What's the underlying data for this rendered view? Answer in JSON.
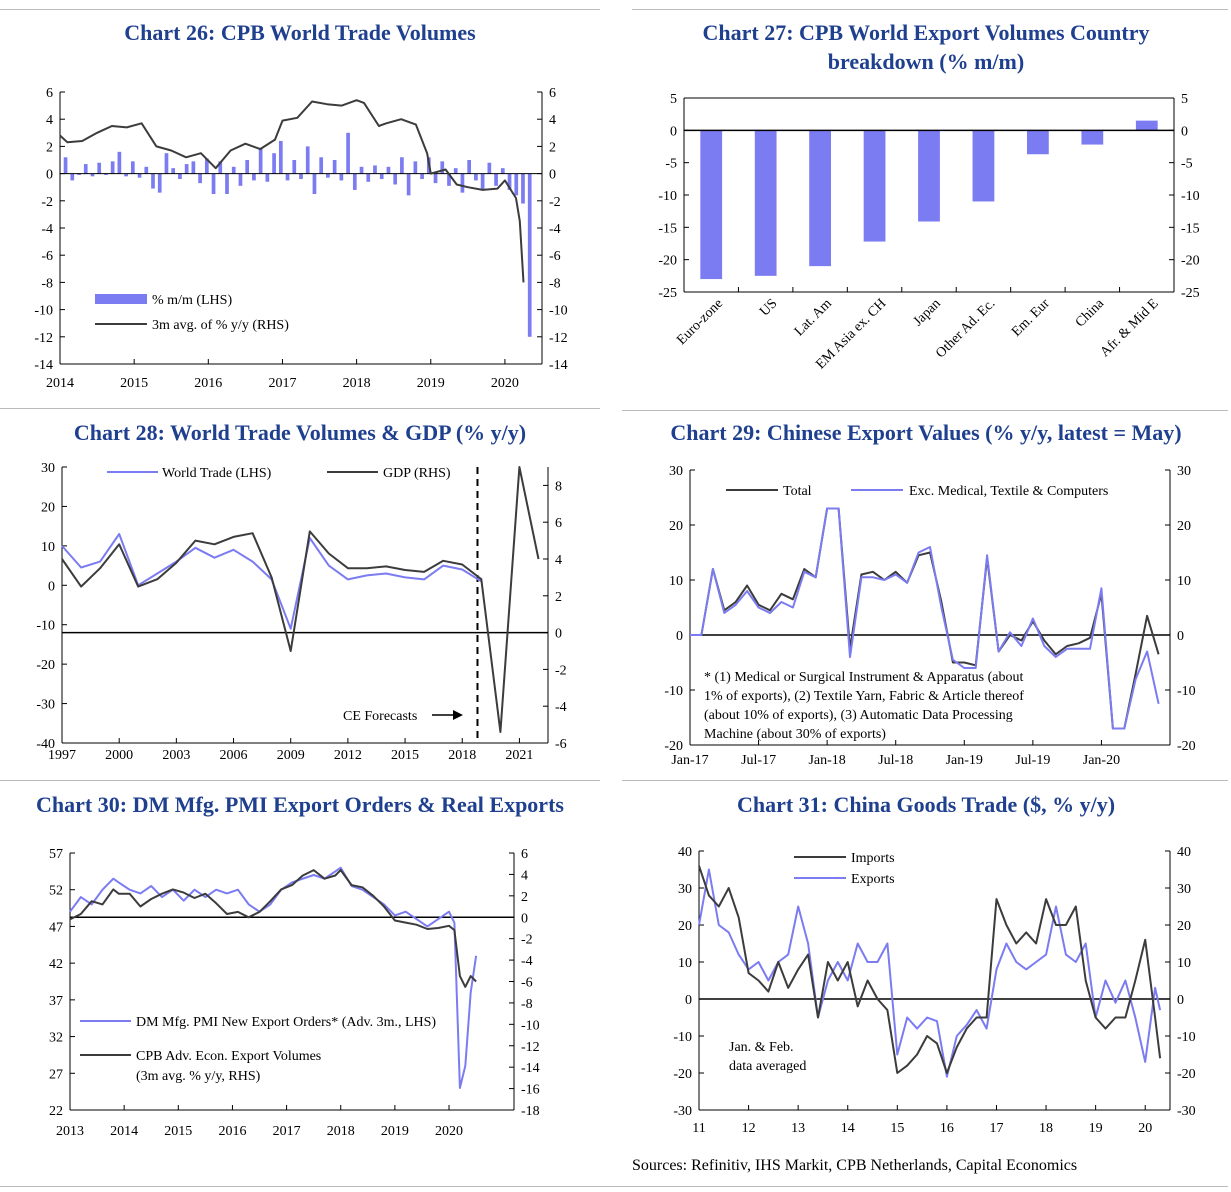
{
  "source_note": "Sources: Refinitiv, IHS Markit, CPB Netherlands, Capital Economics",
  "colors": {
    "title": "#1F3F8F",
    "blue": "#7B7BF2",
    "dark": "#3C3C3C"
  },
  "chart_data": [
    {
      "id": "c26",
      "type": "bar+line",
      "title": "Chart 26: CPB World Trade Volumes",
      "xlim": [
        2014,
        2020.5
      ],
      "ylim": [
        -14,
        6
      ],
      "ylim_right": [
        -14,
        6
      ],
      "y_ticks": [
        "-14",
        "-12",
        "-10",
        "-8",
        "-6",
        "-4",
        "-2",
        "0",
        "2",
        "4",
        "6"
      ],
      "x_ticks": [
        "2014",
        "2015",
        "2016",
        "2017",
        "2018",
        "2019",
        "2020"
      ],
      "legend": [
        "% m/m (LHS)",
        "3m avg. of % y/y (RHS)"
      ],
      "bars_mm": [
        1.2,
        -0.5,
        -0.1,
        0.7,
        -0.2,
        0.8,
        -0.1,
        0.9,
        1.6,
        -0.2,
        0.9,
        -0.3,
        0.5,
        -1.1,
        -1.4,
        1.5,
        0.4,
        -0.4,
        0.7,
        0.9,
        -0.7,
        1.1,
        -1.5,
        0.9,
        -1.5,
        0.5,
        -0.9,
        1.0,
        -0.5,
        1.9,
        -0.6,
        1.5,
        2.4,
        -0.5,
        1.0,
        -0.4,
        2.0,
        -1.5,
        1.2,
        -0.3,
        1.0,
        -0.5,
        3.0,
        -1.2,
        0.5,
        -0.6,
        0.6,
        -0.4,
        0.5,
        -0.8,
        1.2,
        -1.6,
        0.9,
        -0.4,
        1.2,
        -0.7,
        0.9,
        -0.9,
        0.4,
        -1.4,
        1.0,
        -0.5,
        -1.2,
        0.8,
        -0.9,
        0.4,
        -1.2,
        -1.6,
        -2.2,
        -12.0
      ],
      "line_x": [
        2014,
        2014.1,
        2014.3,
        2014.5,
        2014.7,
        2014.9,
        2015.1,
        2015.3,
        2015.5,
        2015.7,
        2015.9,
        2016.1,
        2016.3,
        2016.5,
        2016.7,
        2016.9,
        2017.0,
        2017.2,
        2017.4,
        2017.6,
        2017.8,
        2018.0,
        2018.1,
        2018.3,
        2018.4,
        2018.6,
        2018.8,
        2018.95,
        2019.0,
        2019.2,
        2019.35,
        2019.5,
        2019.7,
        2019.9,
        2020.0,
        2020.15,
        2020.2,
        2020.25
      ],
      "line_y": [
        2.8,
        2.3,
        2.4,
        3.0,
        3.5,
        3.4,
        3.7,
        2.0,
        1.7,
        1.2,
        1.5,
        0.4,
        1.7,
        2.2,
        1.8,
        2.5,
        3.9,
        4.1,
        5.3,
        5.1,
        5.0,
        5.4,
        5.2,
        3.5,
        3.7,
        4.0,
        3.6,
        1.5,
        0.0,
        0.3,
        -0.8,
        -1.0,
        -1.2,
        -1.1,
        -0.5,
        -1.8,
        -3.5,
        -8.0
      ]
    },
    {
      "id": "c27",
      "type": "bar",
      "title": "Chart 27: CPB World Export Volumes Country breakdown (% m/m)",
      "categories": [
        "Euro-zone",
        "US",
        "Lat. Am",
        "EM Asia ex. CH",
        "Japan",
        "Other Ad. Ec.",
        "Em. Eur",
        "China",
        "Afr. & Mid E"
      ],
      "values": [
        -23.0,
        -22.5,
        -21.0,
        -17.2,
        -14.1,
        -11.0,
        -3.7,
        -2.2,
        1.5
      ],
      "ylim": [
        -25,
        5
      ],
      "y_ticks": [
        "-25",
        "-20",
        "-15",
        "-10",
        "-5",
        "0",
        "5"
      ]
    },
    {
      "id": "c28",
      "type": "line",
      "title": "Chart 28: World Trade Volumes & GDP (% y/y)",
      "xlim": [
        1997,
        2022.5
      ],
      "ylim": [
        -40,
        30
      ],
      "ylim_right": [
        -6,
        9
      ],
      "y_ticks": [
        "-40",
        "-30",
        "-20",
        "-10",
        "0",
        "10",
        "20",
        "30"
      ],
      "y_ticks_right": [
        "-6",
        "-4",
        "-2",
        "0",
        "2",
        "4",
        "6",
        "8"
      ],
      "x_ticks": [
        "1997",
        "2000",
        "2003",
        "2006",
        "2009",
        "2012",
        "2015",
        "2018",
        "2021"
      ],
      "legend": [
        "World Trade (LHS)",
        "GDP (RHS)"
      ],
      "annotation": "CE Forecasts",
      "forecast_x": 2018.8,
      "series": [
        {
          "name": "World Trade (LHS)",
          "x": [
            1997,
            1998,
            1999,
            2000,
            2001,
            2002,
            2003,
            2004,
            2005,
            2006,
            2007,
            2008,
            2009,
            2010,
            2011,
            2012,
            2013,
            2014,
            2015,
            2016,
            2017,
            2018,
            2019
          ],
          "y": [
            10,
            4.5,
            6,
            13,
            0,
            3,
            6,
            9.5,
            7,
            9,
            6,
            1.5,
            -11,
            12,
            5,
            1.5,
            2.5,
            3,
            2,
            1.5,
            5,
            4,
            1
          ]
        },
        {
          "name": "GDP (RHS)",
          "x": [
            1997,
            1998,
            1999,
            2000,
            2001,
            2002,
            2003,
            2004,
            2005,
            2006,
            2007,
            2008,
            2009,
            2010,
            2011,
            2012,
            2013,
            2014,
            2015,
            2016,
            2017,
            2018,
            2019,
            2020,
            2021,
            2022
          ],
          "y": [
            4,
            2.5,
            3.5,
            4.8,
            2.5,
            2.9,
            3.8,
            5.0,
            4.8,
            5.2,
            5.4,
            3.0,
            -1.0,
            5.5,
            4.3,
            3.5,
            3.5,
            3.6,
            3.4,
            3.3,
            3.9,
            3.7,
            2.9,
            -5.4,
            9.0,
            4.0
          ]
        }
      ]
    },
    {
      "id": "c29",
      "type": "line",
      "title": "Chart 29: Chinese Export Values (% y/y, latest = May)",
      "xlim": [
        2017.0,
        2020.5
      ],
      "ylim": [
        -20,
        30
      ],
      "y_ticks": [
        "-20",
        "-10",
        "0",
        "10",
        "20",
        "30"
      ],
      "x_ticks": [
        "Jan-17",
        "Jul-17",
        "Jan-18",
        "Jul-18",
        "Jan-19",
        "Jul-19",
        "Jan-20"
      ],
      "legend": [
        "Total",
        "Exc. Medical, Textile & Computers"
      ],
      "footnote": [
        "* (1) Medical or Surgical Instrument & Apparatus (about",
        "1% of exports), (2) Textile Yarn, Fabric & Article thereof",
        "(about 10% of exports), (3)  Automatic Data Processing",
        "Machine (about 30% of exports)"
      ],
      "series": [
        {
          "name": "Total",
          "y": [
            0,
            0,
            12,
            4.5,
            6,
            9,
            5.5,
            4.5,
            7.5,
            6.5,
            12,
            10.5,
            23,
            23,
            -2.5,
            11,
            11.5,
            10,
            11.5,
            9.5,
            14.5,
            15,
            6,
            -5,
            -5,
            -5.5,
            14,
            -3,
            0,
            -1,
            2.5,
            -1,
            -3.5,
            -2,
            -1.5,
            -0.5,
            7.5,
            -17,
            -17,
            -7,
            3.5,
            -3.5
          ]
        },
        {
          "name": "Exc. Medical, Textile & Computers",
          "y": [
            0,
            0,
            12,
            4,
            5.5,
            8,
            5,
            4,
            6,
            5,
            11.5,
            10.5,
            23,
            23,
            -4,
            10.5,
            10.5,
            10,
            11,
            9.5,
            15,
            16,
            5,
            -4.5,
            -6,
            -6,
            14.5,
            -3,
            0.5,
            -2,
            3,
            -2,
            -4,
            -2.5,
            -2.5,
            -2.5,
            8.5,
            -17,
            -17,
            -8,
            -3,
            -12.5
          ]
        }
      ]
    },
    {
      "id": "c30",
      "type": "line",
      "title": "Chart 30: DM Mfg. PMI Export Orders & Real Exports",
      "xlim": [
        2013,
        2021.2
      ],
      "ylim": [
        22,
        57
      ],
      "ylim_right": [
        -18,
        6
      ],
      "y_ticks": [
        "22",
        "27",
        "32",
        "37",
        "42",
        "47",
        "52",
        "57"
      ],
      "y_ticks_right": [
        "-18",
        "-16",
        "-14",
        "-12",
        "-10",
        "-8",
        "-6",
        "-4",
        "-2",
        "0",
        "2",
        "4",
        "6"
      ],
      "x_ticks": [
        "2013",
        "2014",
        "2015",
        "2016",
        "2017",
        "2018",
        "2019",
        "2020"
      ],
      "legend": [
        "DM Mfg. PMI New Export Orders* (Adv. 3m., LHS)",
        "CPB Adv. Econ. Export Volumes",
        "(3m avg. % y/y, RHS)"
      ],
      "series": [
        {
          "name": "DM Mfg. PMI New Export Orders",
          "x": [
            2013,
            2013.2,
            2013.4,
            2013.6,
            2013.8,
            2013.9,
            2014.1,
            2014.3,
            2014.5,
            2014.7,
            2014.9,
            2015.1,
            2015.3,
            2015.5,
            2015.7,
            2015.9,
            2016.1,
            2016.3,
            2016.5,
            2016.7,
            2016.9,
            2017.1,
            2017.3,
            2017.5,
            2017.7,
            2017.9,
            2018.0,
            2018.2,
            2018.4,
            2018.6,
            2018.8,
            2019.0,
            2019.2,
            2019.4,
            2019.6,
            2019.8,
            2020.0,
            2020.1,
            2020.2,
            2020.3,
            2020.4,
            2020.5
          ],
          "y": [
            49,
            51,
            50,
            52,
            53.5,
            53,
            52,
            51.5,
            52.5,
            51,
            52,
            50.5,
            52,
            51,
            52,
            51.5,
            52,
            50,
            49,
            50,
            52,
            53,
            53.5,
            54,
            53.5,
            54.5,
            55,
            52.5,
            52,
            51,
            50,
            48.5,
            49,
            48,
            47,
            48,
            49,
            47.5,
            25,
            28,
            38,
            43
          ]
        },
        {
          "name": "CPB Adv. Econ. Export Volumes",
          "x": [
            2013,
            2013.2,
            2013.4,
            2013.6,
            2013.8,
            2013.9,
            2014.1,
            2014.3,
            2014.5,
            2014.7,
            2014.9,
            2015.1,
            2015.3,
            2015.5,
            2015.7,
            2015.9,
            2016.1,
            2016.3,
            2016.5,
            2016.7,
            2016.9,
            2017.1,
            2017.3,
            2017.5,
            2017.7,
            2017.9,
            2018.0,
            2018.2,
            2018.4,
            2018.6,
            2018.8,
            2019.0,
            2019.2,
            2019.4,
            2019.6,
            2019.8,
            2020.0,
            2020.1,
            2020.2,
            2020.3,
            2020.4,
            2020.5
          ],
          "y": [
            -0.2,
            0.3,
            1.5,
            1.2,
            2.6,
            2.2,
            2.2,
            1.0,
            1.7,
            2.2,
            2.6,
            2.3,
            1.8,
            2.2,
            1.3,
            0.3,
            0.5,
            0.0,
            0.5,
            1.5,
            2.6,
            3.0,
            3.9,
            4.4,
            3.6,
            3.9,
            4.4,
            3.0,
            2.8,
            2.0,
            1.0,
            -0.3,
            -0.5,
            -0.7,
            -1.1,
            -1.0,
            -0.8,
            -1.2,
            -5.5,
            -6.5,
            -5.5,
            -6.0
          ]
        }
      ]
    },
    {
      "id": "c31",
      "type": "line",
      "title": "Chart 31: China Goods Trade ($, % y/y)",
      "xlim": [
        2011,
        2020.5
      ],
      "ylim": [
        -30,
        40
      ],
      "y_ticks": [
        "-30",
        "-20",
        "-10",
        "0",
        "10",
        "20",
        "30",
        "40"
      ],
      "x_ticks": [
        "11",
        "12",
        "13",
        "14",
        "15",
        "16",
        "17",
        "18",
        "19",
        "20"
      ],
      "legend": [
        "Imports",
        "Exports"
      ],
      "annotation": [
        "Jan. & Feb.",
        "data averaged"
      ],
      "series": [
        {
          "name": "Imports",
          "x": [
            2011.0,
            2011.2,
            2011.4,
            2011.6,
            2011.8,
            2012.0,
            2012.2,
            2012.4,
            2012.6,
            2012.8,
            2013.0,
            2013.2,
            2013.4,
            2013.6,
            2013.8,
            2014.0,
            2014.2,
            2014.4,
            2014.6,
            2014.8,
            2015.0,
            2015.2,
            2015.4,
            2015.6,
            2015.8,
            2016.0,
            2016.2,
            2016.4,
            2016.6,
            2016.8,
            2017.0,
            2017.2,
            2017.4,
            2017.6,
            2017.8,
            2018.0,
            2018.2,
            2018.4,
            2018.6,
            2018.8,
            2019.0,
            2019.2,
            2019.4,
            2019.6,
            2019.8,
            2020.0,
            2020.2,
            2020.3
          ],
          "y": [
            36,
            28,
            25,
            30,
            22,
            7,
            5,
            2,
            10,
            3,
            8,
            12,
            -5,
            10,
            5,
            10,
            -2,
            5,
            0,
            -3,
            -20,
            -18,
            -15,
            -10,
            -12,
            -20,
            -13,
            -8,
            -5,
            -5,
            27,
            20,
            15,
            18,
            15,
            27,
            20,
            20,
            25,
            5,
            -5,
            -8,
            -5,
            -5,
            5,
            16,
            -5,
            -16
          ]
        },
        {
          "name": "Exports",
          "x": [
            2011.0,
            2011.2,
            2011.4,
            2011.6,
            2011.8,
            2012.0,
            2012.2,
            2012.4,
            2012.6,
            2012.8,
            2013.0,
            2013.2,
            2013.4,
            2013.6,
            2013.8,
            2014.0,
            2014.2,
            2014.4,
            2014.6,
            2014.8,
            2015.0,
            2015.2,
            2015.4,
            2015.6,
            2015.8,
            2016.0,
            2016.2,
            2016.4,
            2016.6,
            2016.8,
            2017.0,
            2017.2,
            2017.4,
            2017.6,
            2017.8,
            2018.0,
            2018.2,
            2018.4,
            2018.6,
            2018.8,
            2019.0,
            2019.2,
            2019.4,
            2019.6,
            2019.8,
            2020.0,
            2020.2,
            2020.3
          ],
          "y": [
            20,
            35,
            20,
            18,
            12,
            8,
            10,
            5,
            10,
            12,
            25,
            15,
            -5,
            5,
            10,
            5,
            15,
            10,
            10,
            15,
            -15,
            -5,
            -8,
            -5,
            -6,
            -21,
            -10,
            -7,
            -3,
            -8,
            8,
            15,
            10,
            8,
            10,
            12,
            25,
            12,
            10,
            15,
            -5,
            5,
            -1,
            5,
            -5,
            -17,
            3,
            -3
          ]
        }
      ]
    }
  ]
}
